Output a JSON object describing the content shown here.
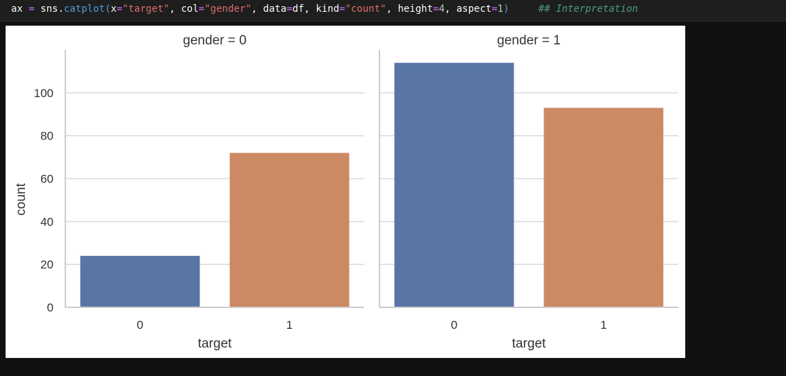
{
  "code": {
    "tokens": [
      {
        "text": "ax",
        "cls": "tok-var"
      },
      {
        "text": " = ",
        "cls": "tok-op"
      },
      {
        "text": "sns.",
        "cls": "tok-var"
      },
      {
        "text": "catplot",
        "cls": "tok-fn"
      },
      {
        "text": "(",
        "cls": "tok-fn"
      },
      {
        "text": "x",
        "cls": "tok-var"
      },
      {
        "text": "=",
        "cls": "tok-op"
      },
      {
        "text": "\"target\"",
        "cls": "tok-str"
      },
      {
        "text": ", ",
        "cls": "tok-var"
      },
      {
        "text": "col",
        "cls": "tok-var"
      },
      {
        "text": "=",
        "cls": "tok-op"
      },
      {
        "text": "\"gender\"",
        "cls": "tok-str"
      },
      {
        "text": ", ",
        "cls": "tok-var"
      },
      {
        "text": "data",
        "cls": "tok-var"
      },
      {
        "text": "=",
        "cls": "tok-op"
      },
      {
        "text": "df",
        "cls": "tok-var"
      },
      {
        "text": ", ",
        "cls": "tok-var"
      },
      {
        "text": "kind",
        "cls": "tok-var"
      },
      {
        "text": "=",
        "cls": "tok-op"
      },
      {
        "text": "\"count\"",
        "cls": "tok-str"
      },
      {
        "text": ", ",
        "cls": "tok-var"
      },
      {
        "text": "height",
        "cls": "tok-var"
      },
      {
        "text": "=",
        "cls": "tok-op"
      },
      {
        "text": "4",
        "cls": "tok-num"
      },
      {
        "text": ", ",
        "cls": "tok-var"
      },
      {
        "text": "aspect",
        "cls": "tok-var"
      },
      {
        "text": "=",
        "cls": "tok-op"
      },
      {
        "text": "1",
        "cls": "tok-num"
      },
      {
        "text": ")",
        "cls": "tok-fn"
      },
      {
        "text": "     ## Interpretation",
        "cls": "tok-cmt"
      }
    ]
  },
  "colors": {
    "bar_0": "#5875a4",
    "bar_1": "#cc8963",
    "grid": "#d9d9d9",
    "spine": "#cccccc"
  },
  "chart_data": [
    {
      "type": "bar",
      "title": "gender = 0",
      "xlabel": "target",
      "ylabel": "count",
      "categories": [
        "0",
        "1"
      ],
      "values": [
        24,
        72
      ],
      "ylim": [
        0,
        120
      ],
      "yticks": [
        0,
        20,
        40,
        60,
        80,
        100
      ],
      "grid": true
    },
    {
      "type": "bar",
      "title": "gender = 1",
      "xlabel": "target",
      "ylabel": "",
      "categories": [
        "0",
        "1"
      ],
      "values": [
        114,
        93
      ],
      "ylim": [
        0,
        120
      ],
      "yticks": [
        0,
        20,
        40,
        60,
        80,
        100
      ],
      "grid": true
    }
  ]
}
